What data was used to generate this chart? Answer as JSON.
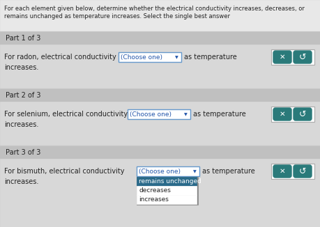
{
  "bg_color": "#c8c8c8",
  "header_bg": "#e8e8e8",
  "part_header_bg": "#c0c0c0",
  "body_bg": "#d8d8d8",
  "white": "#ffffff",
  "teal_btn": "#2a7a7a",
  "dropdown_text_color": "#2255aa",
  "dropdown_border": "#6699cc",
  "highlight_row": "#2a6a8a",
  "text_color": "#222222",
  "header_text_line1": "For each element given below, determine whether the electrical conductivity increases, decreases, or",
  "header_text_line2": "remains unchanged as temperature increases. Select the single best answer",
  "parts": [
    {
      "label": "Part 1 of 3",
      "question": "For radon, electrical conductivity",
      "dropdown_text": "(Choose one)",
      "suffix": "as temperature",
      "second_line": "increases."
    },
    {
      "label": "Part 2 of 3",
      "question": "For selenium, electrical conductivity",
      "dropdown_text": "(Choose one)",
      "suffix": "as temperature",
      "second_line": "increases."
    },
    {
      "label": "Part 3 of 3",
      "question": "For bismuth, electrical conductivity",
      "dropdown_text": "(Choose one)",
      "suffix": "as temperature",
      "second_line": "increases.",
      "dropdown_open": true,
      "options": [
        "remains unchanged",
        "decreases",
        "increases"
      ],
      "highlighted_option": 0
    }
  ]
}
